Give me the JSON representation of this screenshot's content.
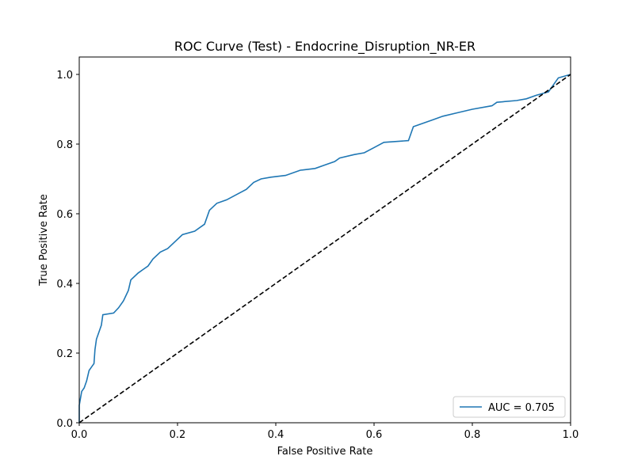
{
  "chart_data": {
    "type": "line",
    "title": "ROC Curve (Test) - Endocrine_Disruption_NR-ER",
    "xlabel": "False Positive Rate",
    "ylabel": "True Positive Rate",
    "xlim": [
      0,
      1
    ],
    "ylim": [
      0,
      1.05
    ],
    "xticks": [
      {
        "value": 0,
        "label": "0.0"
      },
      {
        "value": 0.2,
        "label": "0.2"
      },
      {
        "value": 0.4,
        "label": "0.4"
      },
      {
        "value": 0.6,
        "label": "0.6"
      },
      {
        "value": 0.8,
        "label": "0.8"
      },
      {
        "value": 1,
        "label": "1.0"
      }
    ],
    "yticks": [
      {
        "value": 0,
        "label": "0.0"
      },
      {
        "value": 0.2,
        "label": "0.2"
      },
      {
        "value": 0.4,
        "label": "0.4"
      },
      {
        "value": 0.6,
        "label": "0.6"
      },
      {
        "value": 0.8,
        "label": "0.8"
      },
      {
        "value": 1,
        "label": "1.0"
      }
    ],
    "grid": false,
    "legend": "lower right",
    "series": [
      {
        "name": "AUC = 0.705",
        "color": "#1f77b4",
        "x": [
          0,
          0,
          0.005,
          0.01,
          0.015,
          0.02,
          0.025,
          0.03,
          0.032,
          0.035,
          0.04,
          0.045,
          0.048,
          0.07,
          0.08,
          0.09,
          0.1,
          0.105,
          0.12,
          0.13,
          0.14,
          0.15,
          0.165,
          0.18,
          0.195,
          0.21,
          0.235,
          0.255,
          0.265,
          0.28,
          0.3,
          0.32,
          0.34,
          0.355,
          0.37,
          0.39,
          0.42,
          0.45,
          0.48,
          0.5,
          0.52,
          0.53,
          0.56,
          0.58,
          0.6,
          0.62,
          0.67,
          0.68,
          0.7,
          0.72,
          0.74,
          0.77,
          0.8,
          0.84,
          0.85,
          0.89,
          0.91,
          0.93,
          0.955,
          0.965,
          0.975,
          1
        ],
        "values": [
          0,
          0.05,
          0.09,
          0.1,
          0.12,
          0.15,
          0.16,
          0.17,
          0.21,
          0.24,
          0.26,
          0.28,
          0.31,
          0.315,
          0.33,
          0.35,
          0.38,
          0.41,
          0.43,
          0.44,
          0.45,
          0.47,
          0.49,
          0.5,
          0.52,
          0.54,
          0.55,
          0.57,
          0.61,
          0.63,
          0.64,
          0.655,
          0.67,
          0.69,
          0.7,
          0.705,
          0.71,
          0.725,
          0.73,
          0.74,
          0.75,
          0.76,
          0.77,
          0.775,
          0.79,
          0.805,
          0.81,
          0.85,
          0.86,
          0.87,
          0.88,
          0.89,
          0.9,
          0.91,
          0.92,
          0.925,
          0.93,
          0.94,
          0.95,
          0.97,
          0.99,
          1
        ]
      },
      {
        "color": "#000000",
        "dashed": true,
        "x": [
          0,
          1
        ],
        "values": [
          0,
          1
        ]
      }
    ]
  }
}
